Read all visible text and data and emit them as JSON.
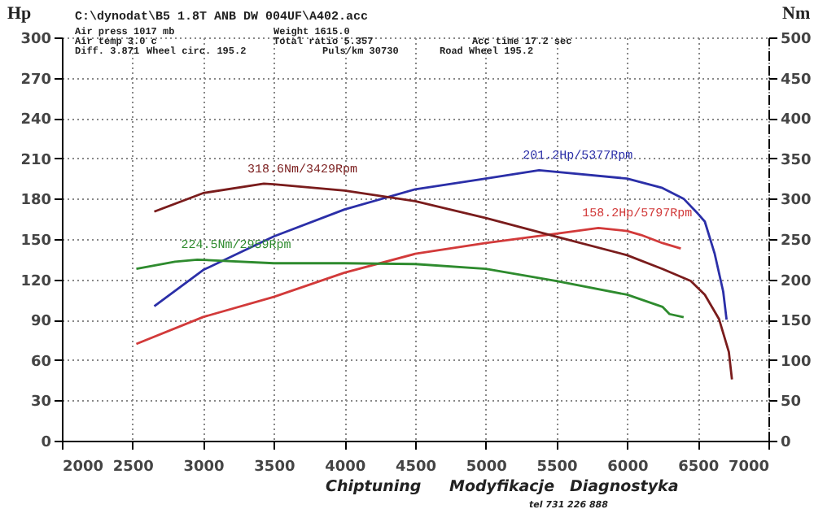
{
  "chart_data": {
    "type": "line",
    "title": "C:\\dynodat\\B5 1.8T ANB DW 004UF\\A402.acc",
    "ylabel": "Hp",
    "y2label": "Nm",
    "annotations": [
      "Air press 1017 mb",
      "Weight 1615.0",
      "Air temp 3.0 c",
      "Total ratio 5.357",
      "Acc time 17.2 sec",
      "Diff. 3.871",
      "Wheel circ. 195.2",
      "Puls/km 30730",
      "Road Wheel 195.2",
      "Chiptuning",
      "Modyfikacje",
      "Diagnostyka",
      "tel 731 226 888"
    ],
    "xlim": [
      2000,
      7000
    ],
    "xticks": [
      2000,
      2500,
      3000,
      3500,
      4000,
      4500,
      5000,
      5500,
      6000,
      6500,
      7000
    ],
    "ylim": [
      0,
      300
    ],
    "yticks": [
      0,
      30,
      60,
      90,
      120,
      150,
      180,
      210,
      240,
      270,
      300
    ],
    "y2lim": [
      0,
      500
    ],
    "y2ticks": [
      0,
      50,
      100,
      150,
      200,
      250,
      300,
      350,
      400,
      450,
      500
    ],
    "grid": true,
    "series": [
      {
        "color": "#2b2fa8",
        "x": [
          2654,
          3000,
          3500,
          4000,
          4500,
          5000,
          5377,
          5500,
          6000,
          6250,
          6400,
          6500,
          6550,
          6620,
          6680,
          6704
        ],
        "values": [
          100,
          127,
          152,
          172,
          187,
          195,
          201.2,
          200,
          195,
          188,
          180,
          169,
          163,
          139,
          111,
          90
        ],
        "value_labels": [
          null,
          null,
          null,
          null,
          null,
          null,
          "201.2Hp/5377Rpm",
          null,
          null,
          null,
          null,
          null,
          null,
          null,
          null,
          null
        ]
      },
      {
        "color": "#d23a3a",
        "x": [
          2527,
          3000,
          3500,
          4000,
          4500,
          5000,
          5500,
          5797,
          6000,
          6100,
          6250,
          6380
        ],
        "values": [
          72,
          92,
          107,
          125,
          139,
          147,
          154,
          158.2,
          156,
          153,
          147,
          143
        ],
        "value_labels": [
          null,
          null,
          null,
          null,
          null,
          null,
          null,
          "158.2Hp/5797Rpm",
          null,
          null,
          null,
          null
        ]
      },
      {
        "color": "#7a1c1c",
        "axis": "y2",
        "x": [
          2654,
          3000,
          3429,
          3500,
          4000,
          4500,
          5000,
          5500,
          6000,
          6250,
          6450,
          6550,
          6650,
          6720,
          6742
        ],
        "values": [
          284,
          307,
          318.6,
          318,
          310,
          297,
          276,
          253,
          230,
          213,
          198,
          181,
          151,
          110,
          76
        ],
        "value_labels": [
          null,
          null,
          "318.6Nm/3429Rpm",
          null,
          null,
          null,
          null,
          null,
          null,
          null,
          null,
          null,
          null,
          null,
          null
        ]
      },
      {
        "color": "#2e8b2e",
        "axis": "y2",
        "x": [
          2527,
          2800,
          2959,
          3500,
          4000,
          4500,
          5000,
          5500,
          6000,
          6250,
          6300,
          6400
        ],
        "values": [
          213,
          222,
          224.5,
          220,
          220,
          219,
          213,
          198,
          181,
          166,
          157,
          153
        ],
        "value_labels": [
          null,
          null,
          "224.5Nm/2959Rpm",
          null,
          null,
          null,
          null,
          null,
          null,
          null,
          null,
          null
        ]
      }
    ]
  }
}
